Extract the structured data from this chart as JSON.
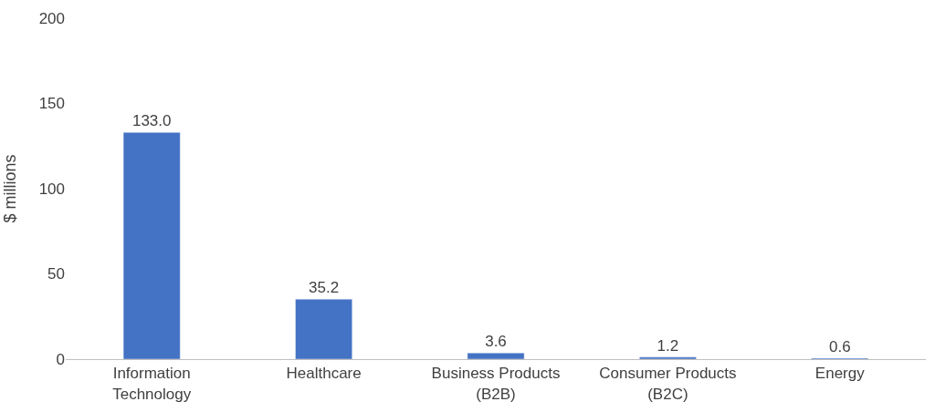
{
  "chart_data": {
    "type": "bar",
    "ylabel": "$ millions",
    "categories": [
      "Information Technology",
      "Healthcare",
      "Business Products (B2B)",
      "Consumer Products (B2C)",
      "Energy"
    ],
    "values": [
      133.0,
      35.2,
      3.6,
      1.2,
      0.6
    ],
    "value_labels": [
      "133.0",
      "35.2",
      "3.6",
      "1.2",
      "0.6"
    ],
    "color": "#4472c4",
    "ylim": [
      0,
      200
    ],
    "yticks": [
      0,
      50,
      100,
      150,
      200
    ],
    "grid": false,
    "legend": false
  }
}
